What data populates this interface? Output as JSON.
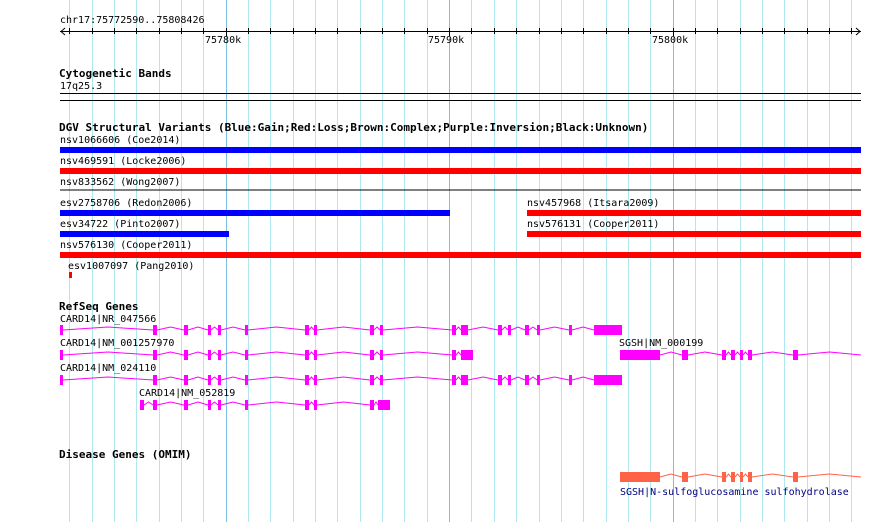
{
  "ruler": {
    "location": "chr17:75772590..75808426",
    "start": 75772590,
    "end": 75808426,
    "tick_labels": [
      "75780k",
      "75790k",
      "75800k"
    ],
    "tick_values": [
      75780000,
      75790000,
      75800000
    ]
  },
  "cytobands": {
    "title": "Cytogenetic Bands",
    "band": "17q25.3"
  },
  "dgv": {
    "title": "DGV Structural Variants (Blue:Gain;Red:Loss;Brown:Complex;Purple:Inversion;Black:Unknown)",
    "variants": [
      {
        "label": "nsv1066606 (Coe2014)",
        "color": "#0000ff"
      },
      {
        "label": "nsv469591 (Locke2006)",
        "color": "#ff0000"
      },
      {
        "label": "nsv833562 (Wong2007)",
        "color": "#000000"
      },
      {
        "label": "esv2758706 (Redon2006)",
        "color": "#0000ff"
      },
      {
        "label": "nsv457968 (Itsara2009)",
        "color": "#ff0000"
      },
      {
        "label": "esv34722 (Pinto2007)",
        "color": "#0000ff"
      },
      {
        "label": "nsv576131 (Cooper2011)",
        "color": "#ff0000"
      },
      {
        "label": "nsv576130 (Cooper2011)",
        "color": "#ff0000"
      },
      {
        "label": "esv1007097 (Pang2010)",
        "color": "#ff0000"
      }
    ]
  },
  "refseq": {
    "title": "RefSeq Genes",
    "color": "#ff00ff",
    "genes": [
      "CARD14|NR_047566",
      "CARD14|NM_001257970",
      "CARD14|NM_024110",
      "CARD14|NM_052819",
      "SGSH|NM_000199"
    ]
  },
  "omim": {
    "title": "Disease Genes (OMIM)",
    "color": "#ff6347",
    "label_color": "#000080",
    "genes": [
      "SGSH|N-sulfoglucosamine sulfohydrolase"
    ]
  }
}
